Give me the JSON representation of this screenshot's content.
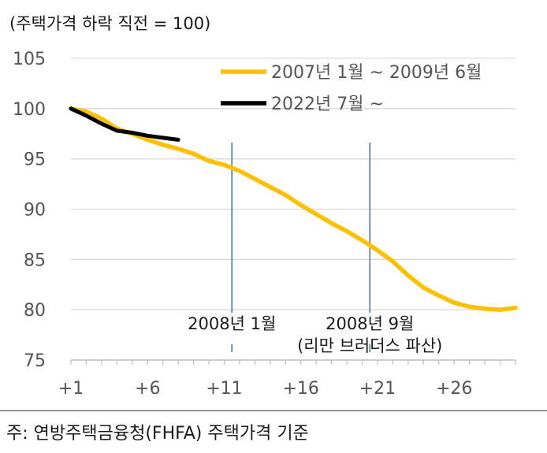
{
  "chart_data": {
    "type": "line",
    "ylabel": "(주택가격 하락 직전 = 100)",
    "ylim": [
      75,
      105
    ],
    "yticks": [
      75,
      80,
      85,
      90,
      95,
      100,
      105
    ],
    "xlim": [
      1,
      30
    ],
    "xticks": [
      1,
      6,
      11,
      16,
      21,
      26
    ],
    "xtick_labels": [
      "+1",
      "+6",
      "+11",
      "+16",
      "+21",
      "+26"
    ],
    "grid": "horizontal",
    "legend_position": "top-right",
    "series": [
      {
        "name": "2007년 1월 ~ 2009년 6월",
        "color": "#FFC000",
        "x": [
          1,
          2,
          3,
          4,
          5,
          6,
          7,
          8,
          9,
          10,
          11,
          12,
          13,
          14,
          15,
          16,
          17,
          18,
          19,
          20,
          21,
          22,
          23,
          24,
          25,
          26,
          27,
          28,
          29,
          30
        ],
        "y": [
          100.0,
          99.7,
          99.0,
          98.0,
          97.5,
          96.9,
          96.4,
          96.0,
          95.5,
          94.8,
          94.4,
          93.8,
          93.0,
          92.2,
          91.4,
          90.4,
          89.5,
          88.6,
          87.8,
          86.9,
          85.9,
          84.8,
          83.4,
          82.2,
          81.4,
          80.7,
          80.3,
          80.1,
          80.0,
          80.2
        ]
      },
      {
        "name": "2022년 7월 ~",
        "color": "#000000",
        "x": [
          1,
          2,
          3,
          4,
          5,
          6,
          7,
          8
        ],
        "y": [
          100.0,
          99.3,
          98.5,
          97.8,
          97.6,
          97.3,
          97.1,
          96.9
        ]
      }
    ],
    "annotations": [
      {
        "label": "2008년 1월",
        "x": 11.5
      },
      {
        "label": "2008년 9월",
        "sublabel": "(리만 브러더스 파산)",
        "x": 20.5
      }
    ]
  },
  "annotation_line_color": "#4A7BAE",
  "footer": {
    "note": "주:  연방주택금융청(FHFA)  주택가격  기준"
  }
}
